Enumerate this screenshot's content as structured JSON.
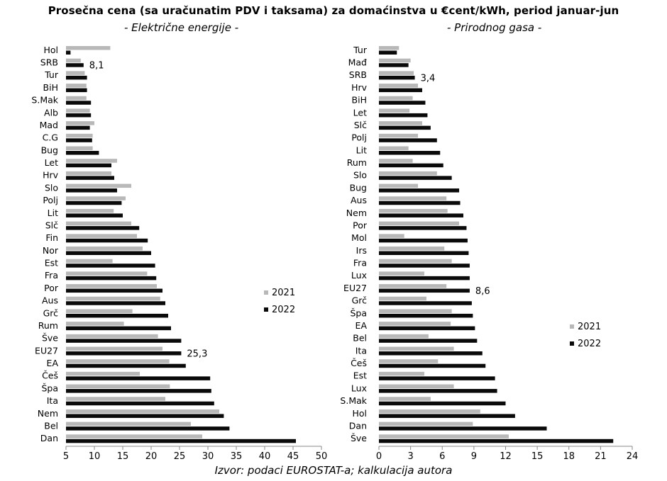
{
  "title": "Prosečna cena (sa uračunatim PDV i taksama) za domaćinstva u €cent/kWh, period januar-jun",
  "source": "Izvor: podaci EUROSTAT-a; kalkulacija autora",
  "colors": {
    "series_2021": "#b8b8b8",
    "series_2022": "#0a0a0a",
    "axis": "#888888"
  },
  "chart_data": [
    {
      "type": "bar",
      "orientation": "horizontal",
      "title": "- Električne energije -",
      "categories": [
        "Hol",
        "SRB",
        "Tur",
        "BiH",
        "S.Mak",
        "Alb",
        "Mad",
        "C.G",
        "Bug",
        "Let",
        "Hrv",
        "Slo",
        "Polj",
        "Lit",
        "Slč",
        "Fin",
        "Nor",
        "Est",
        "Fra",
        "Por",
        "Aus",
        "Grč",
        "Rum",
        "Šve",
        "EU27",
        "EA",
        "Češ",
        "Špa",
        "Ita",
        "Nem",
        "Bel",
        "Dan"
      ],
      "series": [
        {
          "name": "2021",
          "values": [
            12.8,
            7.6,
            8.3,
            8.6,
            8.6,
            9.2,
            10.0,
            9.7,
            9.7,
            14.0,
            13.0,
            16.5,
            15.5,
            13.4,
            16.5,
            17.5,
            18.5,
            13.2,
            19.3,
            21.0,
            21.6,
            16.7,
            15.2,
            21.2,
            22.0,
            23.2,
            18.0,
            23.3,
            22.5,
            32.0,
            27.0,
            29.0
          ]
        },
        {
          "name": "2022",
          "values": [
            5.8,
            8.1,
            8.7,
            8.7,
            9.4,
            9.4,
            9.2,
            9.6,
            10.8,
            13.0,
            13.5,
            14.0,
            14.8,
            15.0,
            17.9,
            19.4,
            20.0,
            20.7,
            20.9,
            22.0,
            22.5,
            23.0,
            23.5,
            25.3,
            25.3,
            26.1,
            30.4,
            30.6,
            31.1,
            32.8,
            33.8,
            45.5
          ]
        }
      ],
      "annotations": [
        {
          "category": "SRB",
          "text": "8,1"
        },
        {
          "category": "EU27",
          "text": "25,3"
        }
      ],
      "xlim": [
        5,
        50
      ],
      "xticks": [
        "5",
        "10",
        "15",
        "20",
        "25",
        "30",
        "35",
        "40",
        "45",
        "50"
      ],
      "legend": [
        "2021",
        "2022"
      ]
    },
    {
      "type": "bar",
      "orientation": "horizontal",
      "title": "- Prirodnog gasa -",
      "categories": [
        "Tur",
        "Mađ",
        "SRB",
        "Hrv",
        "BiH",
        "Let",
        "Slč",
        "Polj",
        "Lit",
        "Rum",
        "Slo",
        "Bug",
        "Aus",
        "Nem",
        "Por",
        "Mol",
        "Irs",
        "Fra",
        "Lux",
        "EU27",
        "Grč",
        "Špa",
        "EA",
        "Bel",
        "Ita",
        "Češ",
        "Est",
        "Lux",
        "S.Mak",
        "Hol",
        "Dan",
        "Šve"
      ],
      "series": [
        {
          "name": "2021",
          "values": [
            1.9,
            3.0,
            3.3,
            3.7,
            3.2,
            2.9,
            4.1,
            3.7,
            2.8,
            3.2,
            5.5,
            3.7,
            6.4,
            6.5,
            7.6,
            2.4,
            6.2,
            6.9,
            4.3,
            6.4,
            4.5,
            6.9,
            6.8,
            4.7,
            7.1,
            5.6,
            4.3,
            7.1,
            4.9,
            9.6,
            8.9,
            12.3
          ]
        },
        {
          "name": "2022",
          "values": [
            1.7,
            2.8,
            3.4,
            4.1,
            4.4,
            4.6,
            4.9,
            5.5,
            5.8,
            6.1,
            6.9,
            7.6,
            7.7,
            8.0,
            8.3,
            8.4,
            8.5,
            8.6,
            8.6,
            8.6,
            8.8,
            8.9,
            9.1,
            9.3,
            9.8,
            10.1,
            11.0,
            11.2,
            12.0,
            12.9,
            15.9,
            22.2
          ]
        }
      ],
      "annotations": [
        {
          "category": "SRB",
          "text": "3,4"
        },
        {
          "category": "EU27",
          "text": "8,6"
        }
      ],
      "xlim": [
        0,
        24
      ],
      "xticks": [
        "0",
        "3",
        "6",
        "9",
        "12",
        "15",
        "18",
        "21",
        "24"
      ],
      "legend": [
        "2021",
        "2022"
      ]
    }
  ]
}
